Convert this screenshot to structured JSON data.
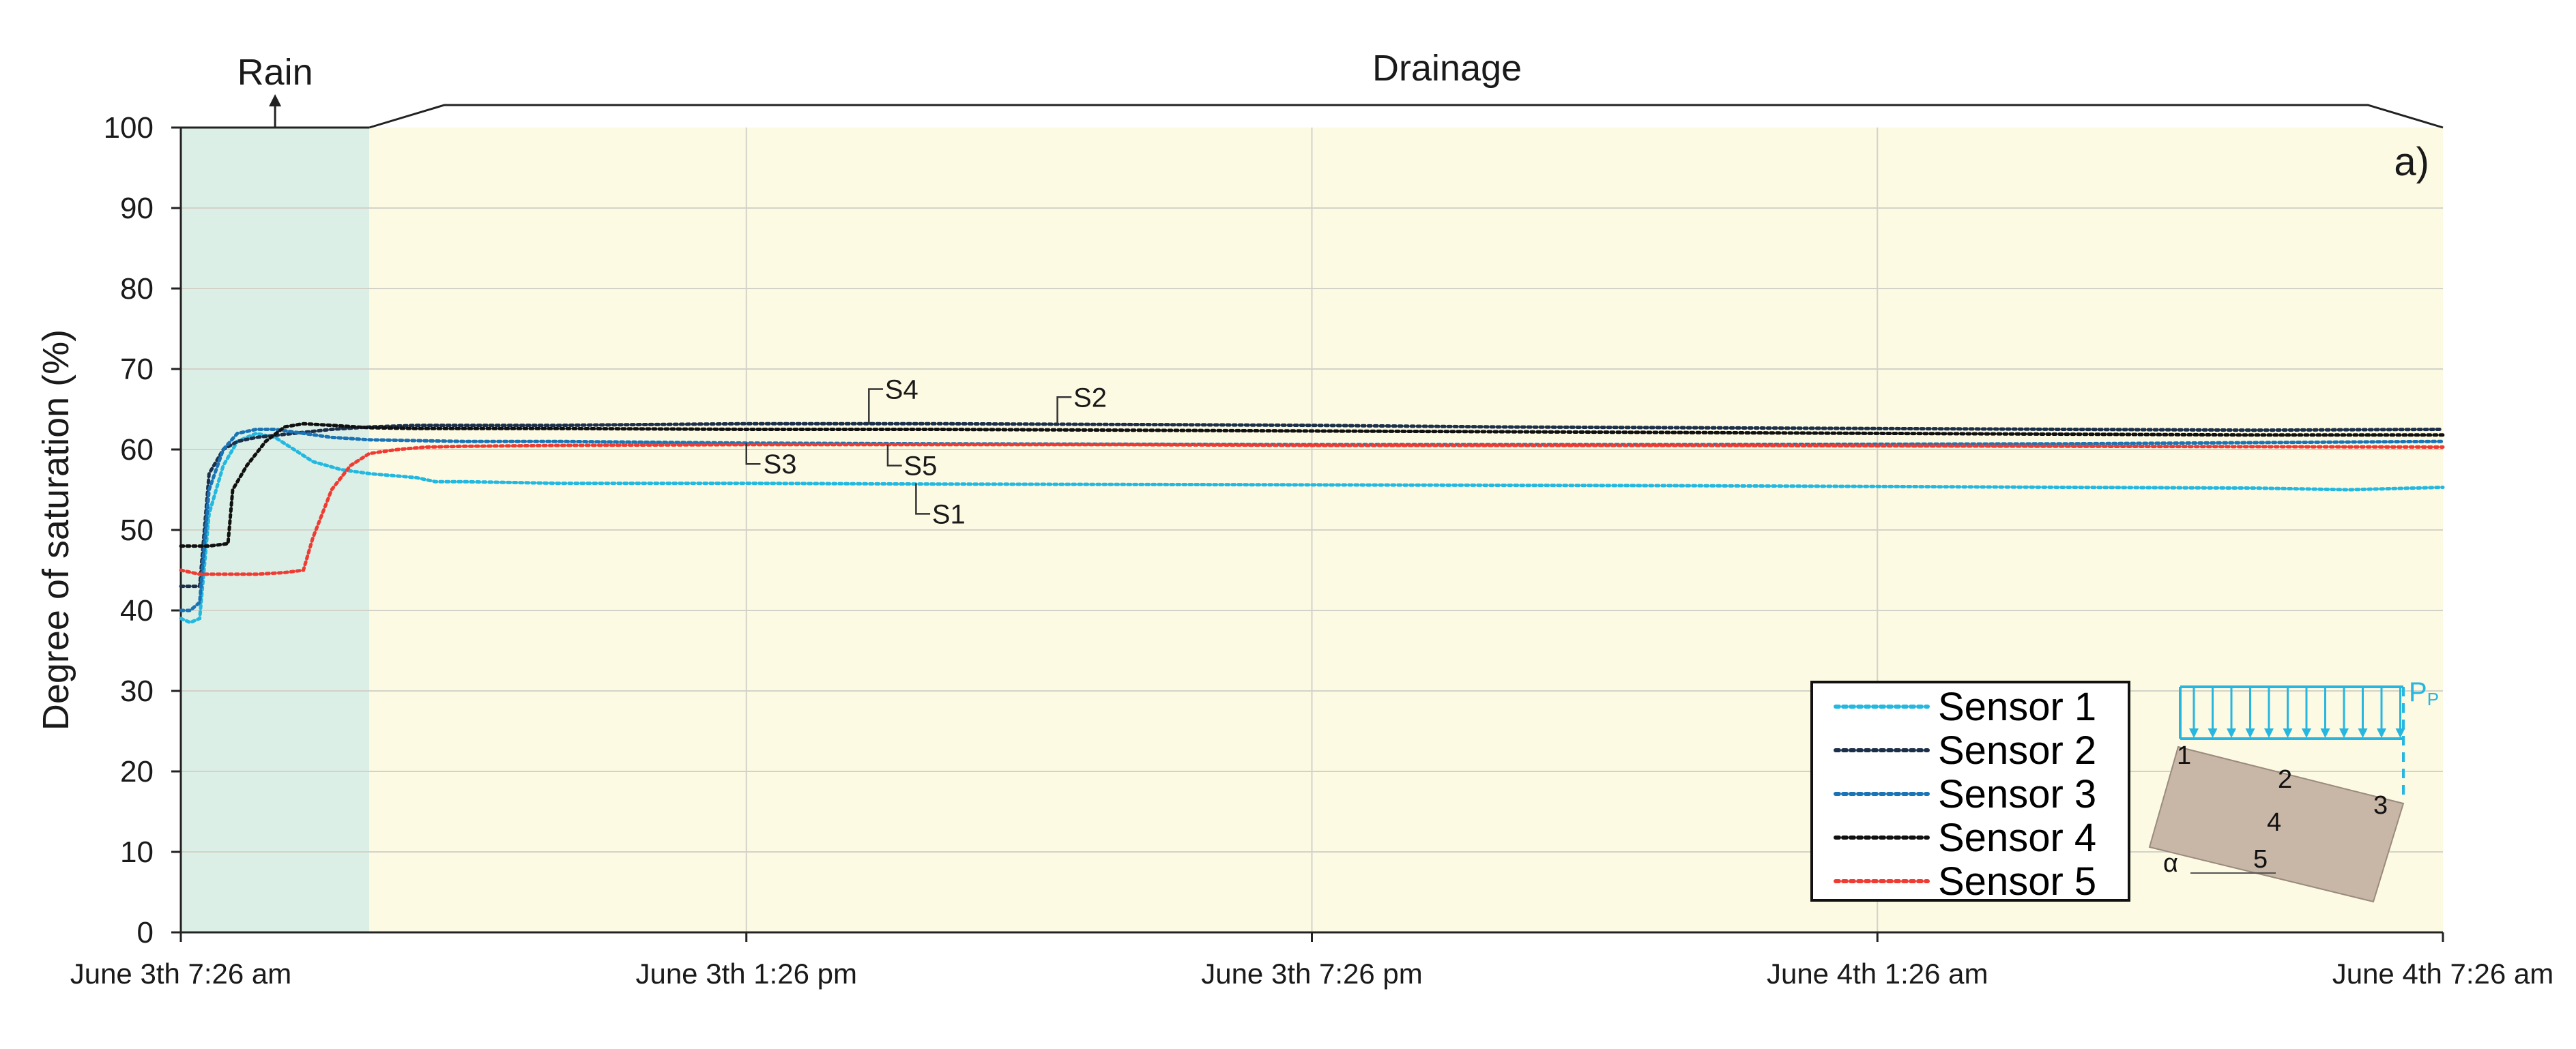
{
  "chart_data": {
    "type": "line",
    "title": "",
    "panel_label": "a)",
    "ylabel": "Degree of saturation (%)",
    "xlabel": "",
    "ylim": [
      0,
      100
    ],
    "yticks": [
      0,
      10,
      20,
      30,
      40,
      50,
      60,
      70,
      80,
      90,
      100
    ],
    "xlim_hours": [
      0,
      24
    ],
    "xticks": [
      {
        "hours": 0,
        "label": "June 3th 7:26 am"
      },
      {
        "hours": 6,
        "label": "June 3th 1:26 pm"
      },
      {
        "hours": 12,
        "label": "June 3th 7:26 pm"
      },
      {
        "hours": 18,
        "label": "June 4th 1:26 am"
      },
      {
        "hours": 24,
        "label": "June 4th 7:26 am"
      }
    ],
    "grid": true,
    "phases": [
      {
        "label": "Rain",
        "start_hours": 0,
        "end_hours": 2.0,
        "color": "#dcefe6"
      },
      {
        "label": "Drainage",
        "start_hours": 2.0,
        "end_hours": 24,
        "color": "#fdfae3"
      }
    ],
    "legend_position": "bottom-right",
    "series": [
      {
        "name": "Sensor 1",
        "label": "S1",
        "color": "#22b8e0",
        "points": [
          [
            0,
            39
          ],
          [
            0.1,
            38.5
          ],
          [
            0.2,
            39
          ],
          [
            0.3,
            52
          ],
          [
            0.45,
            58
          ],
          [
            0.6,
            61
          ],
          [
            0.8,
            62
          ],
          [
            1.0,
            61.5
          ],
          [
            1.2,
            60
          ],
          [
            1.4,
            58.5
          ],
          [
            1.7,
            57.5
          ],
          [
            2.0,
            57
          ],
          [
            2.5,
            56.5
          ],
          [
            2.7,
            56
          ],
          [
            3,
            56
          ],
          [
            4,
            55.8
          ],
          [
            6,
            55.8
          ],
          [
            8,
            55.7
          ],
          [
            12,
            55.6
          ],
          [
            16,
            55.5
          ],
          [
            20,
            55.3
          ],
          [
            22,
            55.2
          ],
          [
            23,
            55.0
          ],
          [
            24,
            55.3
          ]
        ]
      },
      {
        "name": "Sensor 2",
        "label": "S2",
        "color": "#1b2f4a",
        "points": [
          [
            0,
            43
          ],
          [
            0.1,
            43
          ],
          [
            0.2,
            43
          ],
          [
            0.3,
            57
          ],
          [
            0.45,
            60
          ],
          [
            0.6,
            61
          ],
          [
            0.8,
            61.5
          ],
          [
            1.2,
            62
          ],
          [
            1.6,
            62.5
          ],
          [
            2.0,
            62.8
          ],
          [
            2.5,
            63
          ],
          [
            3,
            63
          ],
          [
            4,
            63
          ],
          [
            6,
            63.2
          ],
          [
            8,
            63.2
          ],
          [
            10,
            63.1
          ],
          [
            12,
            63
          ],
          [
            14,
            62.8
          ],
          [
            16,
            62.7
          ],
          [
            18,
            62.6
          ],
          [
            20,
            62.5
          ],
          [
            22,
            62.4
          ],
          [
            24,
            62.5
          ]
        ]
      },
      {
        "name": "Sensor 3",
        "label": "S3",
        "color": "#1a73b5",
        "points": [
          [
            0,
            40
          ],
          [
            0.1,
            40
          ],
          [
            0.2,
            41
          ],
          [
            0.3,
            55
          ],
          [
            0.45,
            60
          ],
          [
            0.6,
            62
          ],
          [
            0.8,
            62.5
          ],
          [
            1.0,
            62.5
          ],
          [
            1.3,
            62
          ],
          [
            1.6,
            61.5
          ],
          [
            2.0,
            61.2
          ],
          [
            3,
            61
          ],
          [
            4,
            61
          ],
          [
            6,
            60.8
          ],
          [
            8,
            60.7
          ],
          [
            12,
            60.6
          ],
          [
            16,
            60.6
          ],
          [
            20,
            60.7
          ],
          [
            24,
            61
          ]
        ]
      },
      {
        "name": "Sensor 4",
        "label": "S4",
        "color": "#101010",
        "points": [
          [
            0,
            48
          ],
          [
            0.1,
            48
          ],
          [
            0.3,
            48
          ],
          [
            0.5,
            48.3
          ],
          [
            0.55,
            55
          ],
          [
            0.7,
            58
          ],
          [
            0.9,
            61
          ],
          [
            1.1,
            62.8
          ],
          [
            1.3,
            63.2
          ],
          [
            1.6,
            63
          ],
          [
            2.0,
            62.7
          ],
          [
            2.5,
            62.6
          ],
          [
            3,
            62.6
          ],
          [
            4,
            62.6
          ],
          [
            6,
            62.5
          ],
          [
            8,
            62.5
          ],
          [
            10,
            62.4
          ],
          [
            12,
            62.3
          ],
          [
            14,
            62.2
          ],
          [
            16,
            62.1
          ],
          [
            18,
            62
          ],
          [
            20,
            61.9
          ],
          [
            22,
            61.8
          ],
          [
            24,
            61.8
          ]
        ]
      },
      {
        "name": "Sensor 5",
        "label": "S5",
        "color": "#ef3c33",
        "points": [
          [
            0,
            45
          ],
          [
            0.2,
            44.5
          ],
          [
            0.5,
            44.5
          ],
          [
            0.8,
            44.5
          ],
          [
            1.1,
            44.7
          ],
          [
            1.3,
            45
          ],
          [
            1.4,
            49
          ],
          [
            1.6,
            55
          ],
          [
            1.8,
            58
          ],
          [
            2.0,
            59.5
          ],
          [
            2.3,
            60
          ],
          [
            2.6,
            60.3
          ],
          [
            3,
            60.4
          ],
          [
            4,
            60.5
          ],
          [
            6,
            60.6
          ],
          [
            8,
            60.6
          ],
          [
            10,
            60.6
          ],
          [
            12,
            60.5
          ],
          [
            16,
            60.5
          ],
          [
            20,
            60.4
          ],
          [
            24,
            60.3
          ]
        ]
      }
    ],
    "annotations": [
      {
        "label": "S4"
      },
      {
        "label": "S2"
      },
      {
        "label": "S3"
      },
      {
        "label": "S5"
      },
      {
        "label": "S1"
      }
    ],
    "inset": {
      "load_label": "P",
      "load_subscript": "P",
      "sensor_numbers": [
        "1",
        "2",
        "3",
        "4",
        "5"
      ],
      "angle_label": "α",
      "slab_color": "#c8b6a6",
      "load_color": "#26b6e0"
    }
  }
}
